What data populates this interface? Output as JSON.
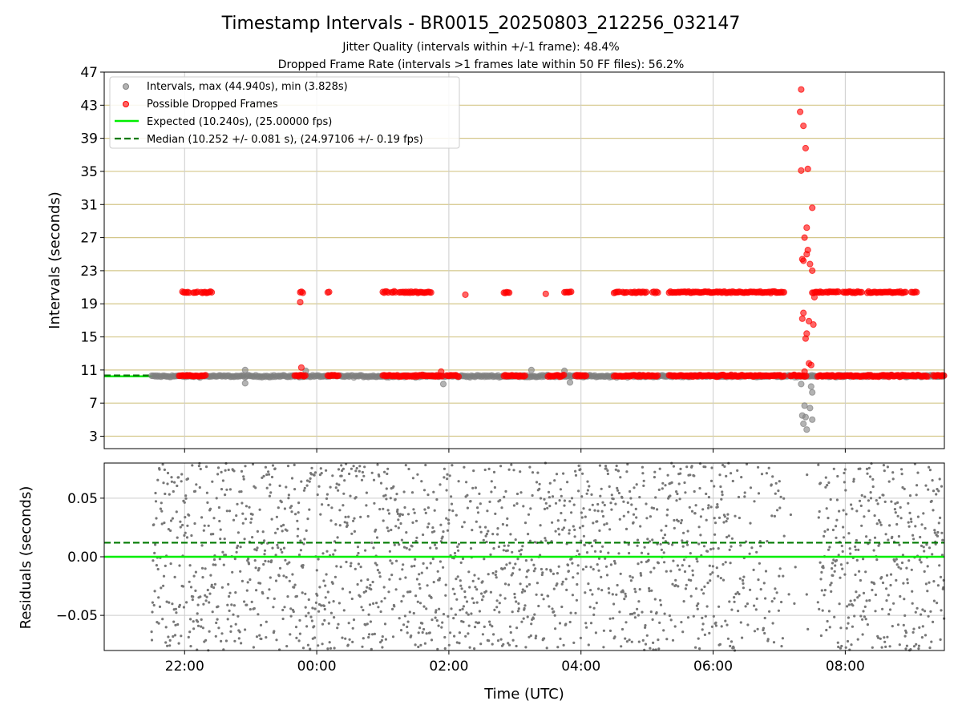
{
  "chart_data": [
    {
      "type": "scatter",
      "title": "Timestamp Intervals - BR0015_20250803_212256_032147",
      "subtitle_lines": [
        "Jitter Quality (intervals within +/-1 frame): 48.4%",
        "Dropped Frame Rate (intervals >1 frames late within 50 FF files): 56.2%"
      ],
      "xlabel": "",
      "ylabel": "Intervals (seconds)",
      "ylim": [
        1.5,
        47
      ],
      "yticks": [
        3,
        7,
        11,
        15,
        19,
        23,
        27,
        31,
        35,
        39,
        43,
        47
      ],
      "x_axis": {
        "type": "time",
        "range_utc": [
          "20:47",
          "09:30"
        ],
        "tick_labels": [
          "22:00",
          "00:00",
          "02:00",
          "04:00",
          "06:00",
          "08:00"
        ]
      },
      "legend": {
        "position": "top-left",
        "entries": [
          "Intervals, max (44.940s), min (3.828s)",
          "Possible Dropped Frames",
          "Expected (10.240s), (25.00000 fps)",
          "Median (10.252 +/- 0.081 s), (24.97106 +/- 0.19 fps)"
        ]
      },
      "reference_lines": {
        "expected": 10.24,
        "median": 10.252
      },
      "colors": {
        "intervals": "#808080",
        "dropped": "#ff0000",
        "expected": "#00ee00",
        "median": "#007a00",
        "ygrid": "#d4c78a",
        "xgrid": "#cccccc"
      },
      "series": [
        {
          "name": "Intervals, max (44.940s), min (3.828s)",
          "band": {
            "x_range_utc": [
              "21:30",
              "09:30"
            ],
            "y_range": [
              9.8,
              10.8
            ]
          },
          "points": [
            {
              "x": "22:55",
              "y": 11.0
            },
            {
              "x": "22:55",
              "y": 9.4
            },
            {
              "x": "23:50",
              "y": 10.9
            },
            {
              "x": "01:55",
              "y": 9.3
            },
            {
              "x": "03:15",
              "y": 11.0
            },
            {
              "x": "03:45",
              "y": 10.9
            },
            {
              "x": "03:50",
              "y": 9.5
            },
            {
              "x": "07:20",
              "y": 9.3
            },
            {
              "x": "07:23",
              "y": 6.7
            },
            {
              "x": "07:21",
              "y": 5.5
            },
            {
              "x": "07:24",
              "y": 5.3
            },
            {
              "x": "07:22",
              "y": 4.5
            },
            {
              "x": "07:25",
              "y": 3.8
            },
            {
              "x": "07:28",
              "y": 6.4
            },
            {
              "x": "07:30",
              "y": 5.0
            },
            {
              "x": "07:29",
              "y": 9.0
            },
            {
              "x": "07:30",
              "y": 8.3
            }
          ]
        },
        {
          "name": "Possible Dropped Frames",
          "lower_band_segments_utc": [
            [
              "21:55",
              "22:20"
            ],
            [
              "23:40",
              "23:50"
            ],
            [
              "00:10",
              "00:20"
            ],
            [
              "01:00",
              "01:55"
            ],
            [
              "01:58",
              "02:10"
            ],
            [
              "02:50",
              "03:10"
            ],
            [
              "03:30",
              "03:45"
            ],
            [
              "03:55",
              "04:05"
            ],
            [
              "04:30",
              "05:10"
            ],
            [
              "05:20",
              "07:05"
            ],
            [
              "07:10",
              "07:25"
            ],
            [
              "07:35",
              "09:15"
            ],
            [
              "09:20",
              "09:30"
            ]
          ],
          "lower_band_y": 10.3,
          "upper_band_segments_utc": [
            [
              "21:58",
              "22:05"
            ],
            [
              "22:08",
              "22:12"
            ],
            [
              "22:15",
              "22:25"
            ],
            [
              "23:45",
              "23:48"
            ],
            [
              "00:10",
              "00:12"
            ],
            [
              "01:00",
              "01:05"
            ],
            [
              "01:08",
              "01:12"
            ],
            [
              "01:15",
              "01:45"
            ],
            [
              "02:50",
              "02:55"
            ],
            [
              "03:45",
              "03:52"
            ],
            [
              "04:30",
              "04:35"
            ],
            [
              "04:38",
              "04:42"
            ],
            [
              "04:45",
              "05:00"
            ],
            [
              "05:05",
              "05:10"
            ],
            [
              "05:20",
              "07:05"
            ],
            [
              "07:30",
              "07:40"
            ],
            [
              "07:42",
              "07:55"
            ],
            [
              "07:58",
              "08:15"
            ],
            [
              "08:20",
              "08:55"
            ],
            [
              "09:00",
              "09:05"
            ]
          ],
          "upper_band_y": 20.4,
          "points": [
            {
              "x": "23:45",
              "y": 19.2
            },
            {
              "x": "23:46",
              "y": 11.3
            },
            {
              "x": "01:53",
              "y": 10.8
            },
            {
              "x": "02:15",
              "y": 20.1
            },
            {
              "x": "03:28",
              "y": 20.2
            },
            {
              "x": "07:32",
              "y": 19.8
            },
            {
              "x": "07:20",
              "y": 44.9
            },
            {
              "x": "07:19",
              "y": 42.2
            },
            {
              "x": "07:22",
              "y": 40.5
            },
            {
              "x": "07:24",
              "y": 37.8
            },
            {
              "x": "07:20",
              "y": 35.1
            },
            {
              "x": "07:26",
              "y": 35.3
            },
            {
              "x": "07:30",
              "y": 30.6
            },
            {
              "x": "07:25",
              "y": 28.2
            },
            {
              "x": "07:23",
              "y": 27.0
            },
            {
              "x": "07:26",
              "y": 25.5
            },
            {
              "x": "07:25",
              "y": 25.0
            },
            {
              "x": "07:22",
              "y": 24.2
            },
            {
              "x": "07:21",
              "y": 24.4
            },
            {
              "x": "07:30",
              "y": 23.0
            },
            {
              "x": "07:28",
              "y": 23.8
            },
            {
              "x": "07:22",
              "y": 17.9
            },
            {
              "x": "07:21",
              "y": 17.2
            },
            {
              "x": "07:27",
              "y": 16.9
            },
            {
              "x": "07:31",
              "y": 16.5
            },
            {
              "x": "07:25",
              "y": 15.4
            },
            {
              "x": "07:24",
              "y": 14.8
            },
            {
              "x": "07:27",
              "y": 11.8
            },
            {
              "x": "07:29",
              "y": 11.6
            },
            {
              "x": "07:23",
              "y": 10.8
            }
          ]
        },
        {
          "name": "Expected (10.240s), (25.00000 fps)",
          "line_y": 10.24,
          "style": "solid"
        },
        {
          "name": "Median (10.252 +/- 0.081 s), (24.97106 +/- 0.19 fps)",
          "line_y": 10.252,
          "style": "dashed"
        }
      ]
    },
    {
      "type": "scatter",
      "title": "",
      "xlabel": "Time (UTC)",
      "ylabel": "Residuals (seconds)",
      "ylim": [
        -0.08,
        0.08
      ],
      "ytick_labels": [
        "0.05",
        "0.00",
        "−0.05"
      ],
      "yticks": [
        0.05,
        0.0,
        -0.05
      ],
      "x_axis": {
        "type": "time",
        "range_utc": [
          "20:47",
          "09:30"
        ],
        "tick_labels": [
          "22:00",
          "00:00",
          "02:00",
          "04:00",
          "06:00",
          "08:00"
        ]
      },
      "reference_lines": {
        "expected": 0.0,
        "median": 0.012
      },
      "colors": {
        "points": "#777777",
        "expected": "#00ee00",
        "median": "#007a00",
        "grid": "#cccccc"
      },
      "series": [
        {
          "name": "",
          "description_range": {
            "x_range_utc": [
              "21:30",
              "09:30"
            ],
            "y_range": [
              -0.08,
              0.08
            ],
            "density": "dense",
            "gap_utc": [
              "07:05",
              "07:35"
            ]
          }
        }
      ]
    }
  ]
}
